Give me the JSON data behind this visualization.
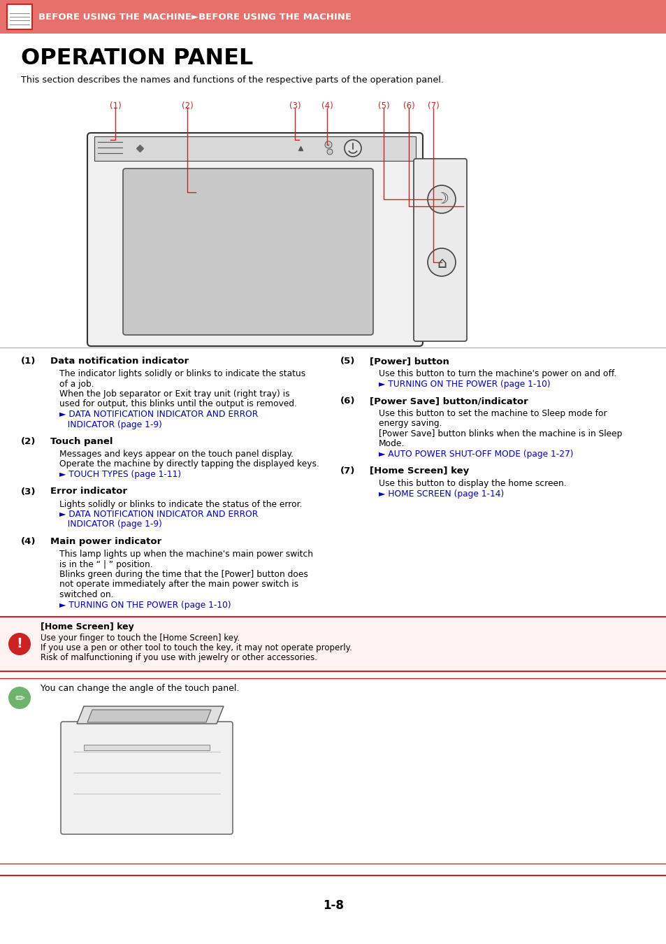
{
  "header_bg": "#E8706A",
  "header_text": "BEFORE USING THE MACHINE►BEFORE USING THE MACHINE",
  "header_text_color": "#FFFFFF",
  "title": "OPERATION PANEL",
  "subtitle": "This section describes the names and functions of the respective parts of the operation panel.",
  "bg_color": "#FFFFFF",
  "text_color": "#000000",
  "link_color": "#0000CC",
  "red_color": "#CC2222",
  "items_left": [
    {
      "num": "(1)",
      "title": "Data notification indicator",
      "body": [
        "The indicator lights solidly or blinks to indicate the status",
        "of a job.",
        "When the Job separator or Exit tray unit (right tray) is",
        "used for output, this blinks until the output is removed."
      ],
      "link1": "► DATA NOTIFICATION INDICATOR AND ERROR",
      "link2": "   INDICATOR (page 1-9)"
    },
    {
      "num": "(2)",
      "title": "Touch panel",
      "body": [
        "Messages and keys appear on the touch panel display.",
        "Operate the machine by directly tapping the displayed keys."
      ],
      "link1": "► TOUCH TYPES (page 1-11)",
      "link2": null
    },
    {
      "num": "(3)",
      "title": "Error indicator",
      "body": [
        "Lights solidly or blinks to indicate the status of the error."
      ],
      "link1": "► DATA NOTIFICATION INDICATOR AND ERROR",
      "link2": "   INDICATOR (page 1-9)"
    },
    {
      "num": "(4)",
      "title": "Main power indicator",
      "body": [
        "This lamp lights up when the machine's main power switch",
        "is in the “ | ” position.",
        "Blinks green during the time that the [Power] button does",
        "not operate immediately after the main power switch is",
        "switched on."
      ],
      "link1": "► TURNING ON THE POWER (page 1-10)",
      "link2": null
    }
  ],
  "items_right": [
    {
      "num": "(5)",
      "title": "[Power] button",
      "body": [
        "Use this button to turn the machine's power on and off."
      ],
      "link1": "► TURNING ON THE POWER (page 1-10)",
      "link2": null
    },
    {
      "num": "(6)",
      "title": "[Power Save] button/indicator",
      "body": [
        "Use this button to set the machine to Sleep mode for",
        "energy saving.",
        "[Power Save] button blinks when the machine is in Sleep",
        "Mode."
      ],
      "link1": "► AUTO POWER SHUT-OFF MODE (page 1-27)",
      "link2": null
    },
    {
      "num": "(7)",
      "title": "[Home Screen] key",
      "body": [
        "Use this button to display the home screen."
      ],
      "link1": "► HOME SCREEN (page 1-14)",
      "link2": null
    }
  ],
  "note_title": "[Home Screen] key",
  "note_lines": [
    "Use your finger to touch the [Home Screen] key.",
    "If you use a pen or other tool to touch the key, it may not operate properly.",
    "Risk of malfunctioning if you use with jewelry or other accessories."
  ],
  "tip_text": "You can change the angle of the touch panel.",
  "page_number": "1-8",
  "diagram_labels": [
    {
      "text": "(1)",
      "fx": 0.172,
      "fy": 0.8385
    },
    {
      "text": "(2)",
      "fx": 0.278,
      "fy": 0.8385
    },
    {
      "text": "(3)",
      "fx": 0.441,
      "fy": 0.8385
    },
    {
      "text": "(4)",
      "fx": 0.49,
      "fy": 0.8385
    },
    {
      "text": "(5)",
      "fx": 0.575,
      "fy": 0.8385
    },
    {
      "text": "(6)",
      "fx": 0.613,
      "fy": 0.8385
    },
    {
      "text": "(7)",
      "fx": 0.651,
      "fy": 0.8385
    }
  ]
}
